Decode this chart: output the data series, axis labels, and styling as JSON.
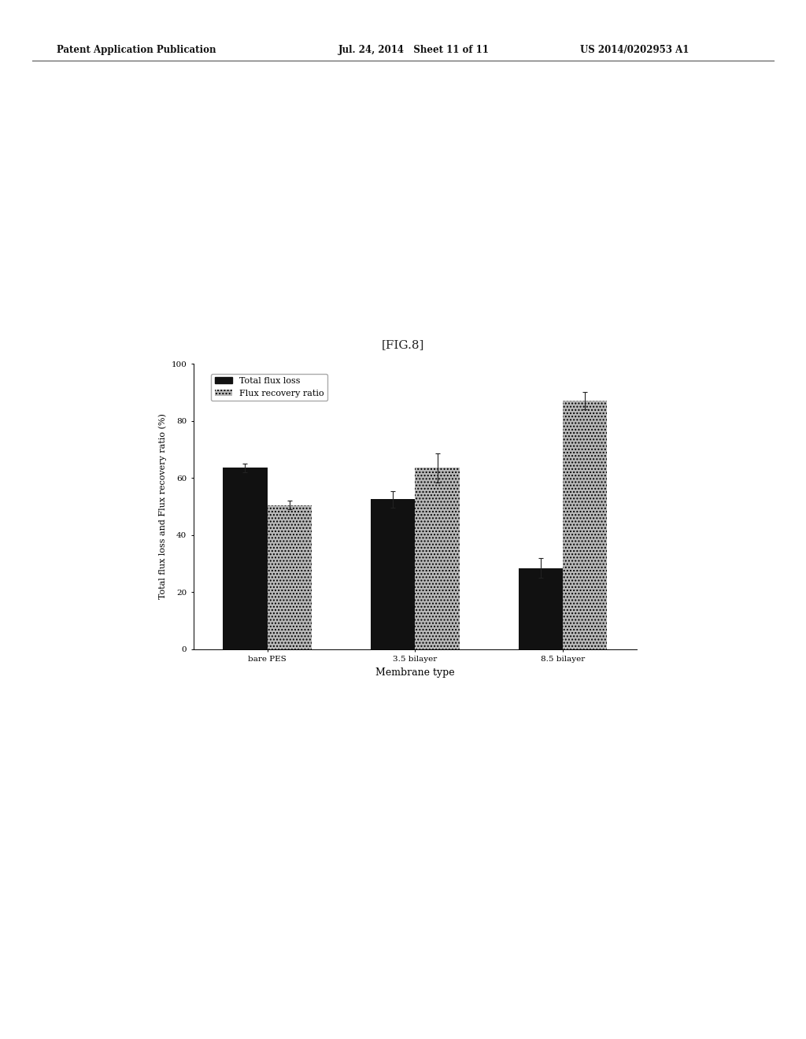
{
  "xlabel": "Membrane type",
  "ylabel": "Total flux loss and Flux recovery ratio (%)",
  "categories": [
    "bare PES",
    "3.5 bilayer",
    "8.5 bilayer"
  ],
  "total_flux_loss": [
    63.5,
    52.5,
    28.5
  ],
  "flux_recovery_ratio": [
    50.5,
    63.5,
    87.0
  ],
  "flux_loss_errors": [
    1.5,
    3.0,
    3.5
  ],
  "flux_recovery_errors": [
    1.5,
    5.0,
    3.0
  ],
  "bar_color_black": "#111111",
  "bar_color_gray": "#b8b8b8",
  "ylim": [
    0,
    100
  ],
  "yticks": [
    0,
    20,
    40,
    60,
    80,
    100
  ],
  "legend_labels": [
    "Total flux loss",
    "Flux recovery ratio"
  ],
  "bar_width": 0.3,
  "background_color": "#ffffff",
  "header_left": "Patent Application Publication",
  "header_mid": "Jul. 24, 2014   Sheet 11 of 11",
  "header_right": "US 2014/0202953 A1",
  "fig_label": "[FIG.8]",
  "title_fontsize": 11,
  "axis_fontsize": 8,
  "tick_fontsize": 7.5,
  "legend_fontsize": 8,
  "header_fontsize": 8.5
}
